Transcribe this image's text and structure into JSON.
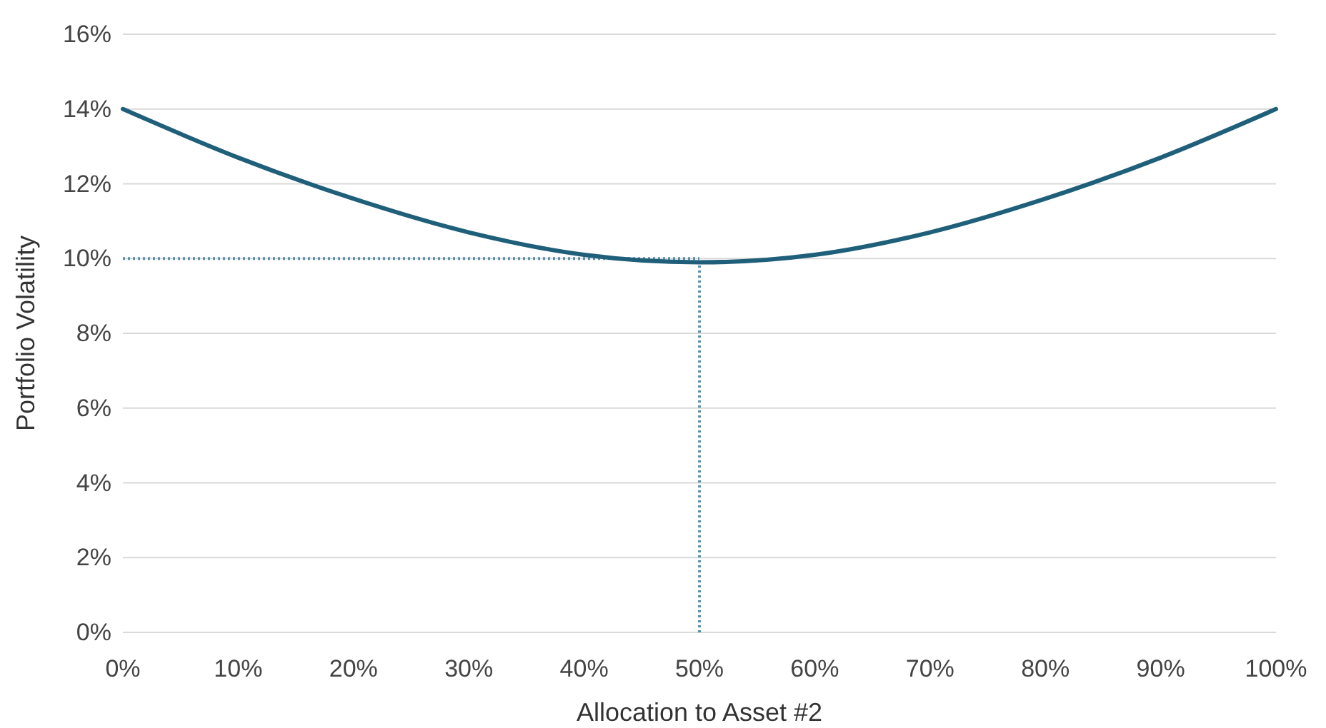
{
  "chart_data": {
    "type": "line",
    "xlabel": "Allocation to Asset #2",
    "ylabel": "Portfolio Volatility",
    "x": [
      0,
      10,
      20,
      30,
      40,
      50,
      60,
      70,
      80,
      90,
      100
    ],
    "series": [
      {
        "color": "#1f5f7a",
        "values": [
          14.0,
          12.7,
          11.6,
          10.7,
          10.1,
          9.9,
          10.1,
          10.7,
          11.6,
          12.7,
          14.0
        ]
      }
    ],
    "xlim": [
      0,
      100
    ],
    "xticks": [
      {
        "value": 0,
        "label": "0%"
      },
      {
        "value": 10,
        "label": "10%"
      },
      {
        "value": 20,
        "label": "20%"
      },
      {
        "value": 30,
        "label": "30%"
      },
      {
        "value": 40,
        "label": "40%"
      },
      {
        "value": 50,
        "label": "50%"
      },
      {
        "value": 60,
        "label": "60%"
      },
      {
        "value": 70,
        "label": "70%"
      },
      {
        "value": 80,
        "label": "80%"
      },
      {
        "value": 90,
        "label": "90%"
      },
      {
        "value": 100,
        "label": "100%"
      }
    ],
    "ylim": [
      0,
      16
    ],
    "yticks": [
      {
        "value": 0,
        "label": "0%"
      },
      {
        "value": 2,
        "label": "2%"
      },
      {
        "value": 4,
        "label": "4%"
      },
      {
        "value": 6,
        "label": "6%"
      },
      {
        "value": 8,
        "label": "8%"
      },
      {
        "value": 10,
        "label": "10%"
      },
      {
        "value": 12,
        "label": "12%"
      },
      {
        "value": 14,
        "label": "14%"
      },
      {
        "value": 16,
        "label": "16%"
      }
    ],
    "ref_lines": [
      {
        "axis": "y",
        "value": 10,
        "color": "#5a8fa8",
        "line_style": "dotted"
      },
      {
        "axis": "x",
        "value": 50,
        "color": "#5a8fa8",
        "line_style": "dotted"
      }
    ],
    "grid": "y",
    "marker": "none",
    "line_style": "solid"
  }
}
